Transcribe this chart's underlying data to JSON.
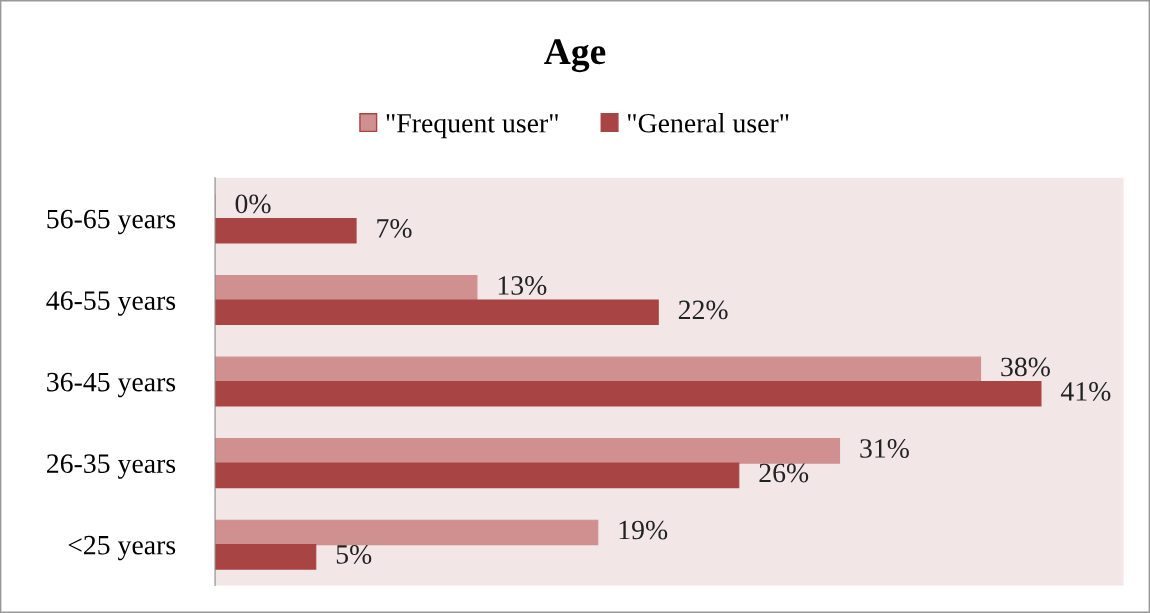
{
  "chart_data": {
    "type": "bar",
    "orientation": "horizontal",
    "title": "Age",
    "categories": [
      "56-65 years",
      "46-55 years",
      "36-45 years",
      "26-35 years",
      "<25 years"
    ],
    "series": [
      {
        "name": "\"Frequent user\"",
        "color": "#d09090",
        "values": [
          0,
          13,
          38,
          31,
          19
        ],
        "value_labels": [
          "0%",
          "13%",
          "38%",
          "31%",
          "19%"
        ]
      },
      {
        "name": "\"General user\"",
        "color": "#a94444",
        "values": [
          7,
          22,
          41,
          26,
          5
        ],
        "value_labels": [
          "7%",
          "22%",
          "41%",
          "26%",
          "5%"
        ]
      }
    ],
    "legend": "top",
    "grid": false,
    "tick_labels": "y"
  }
}
